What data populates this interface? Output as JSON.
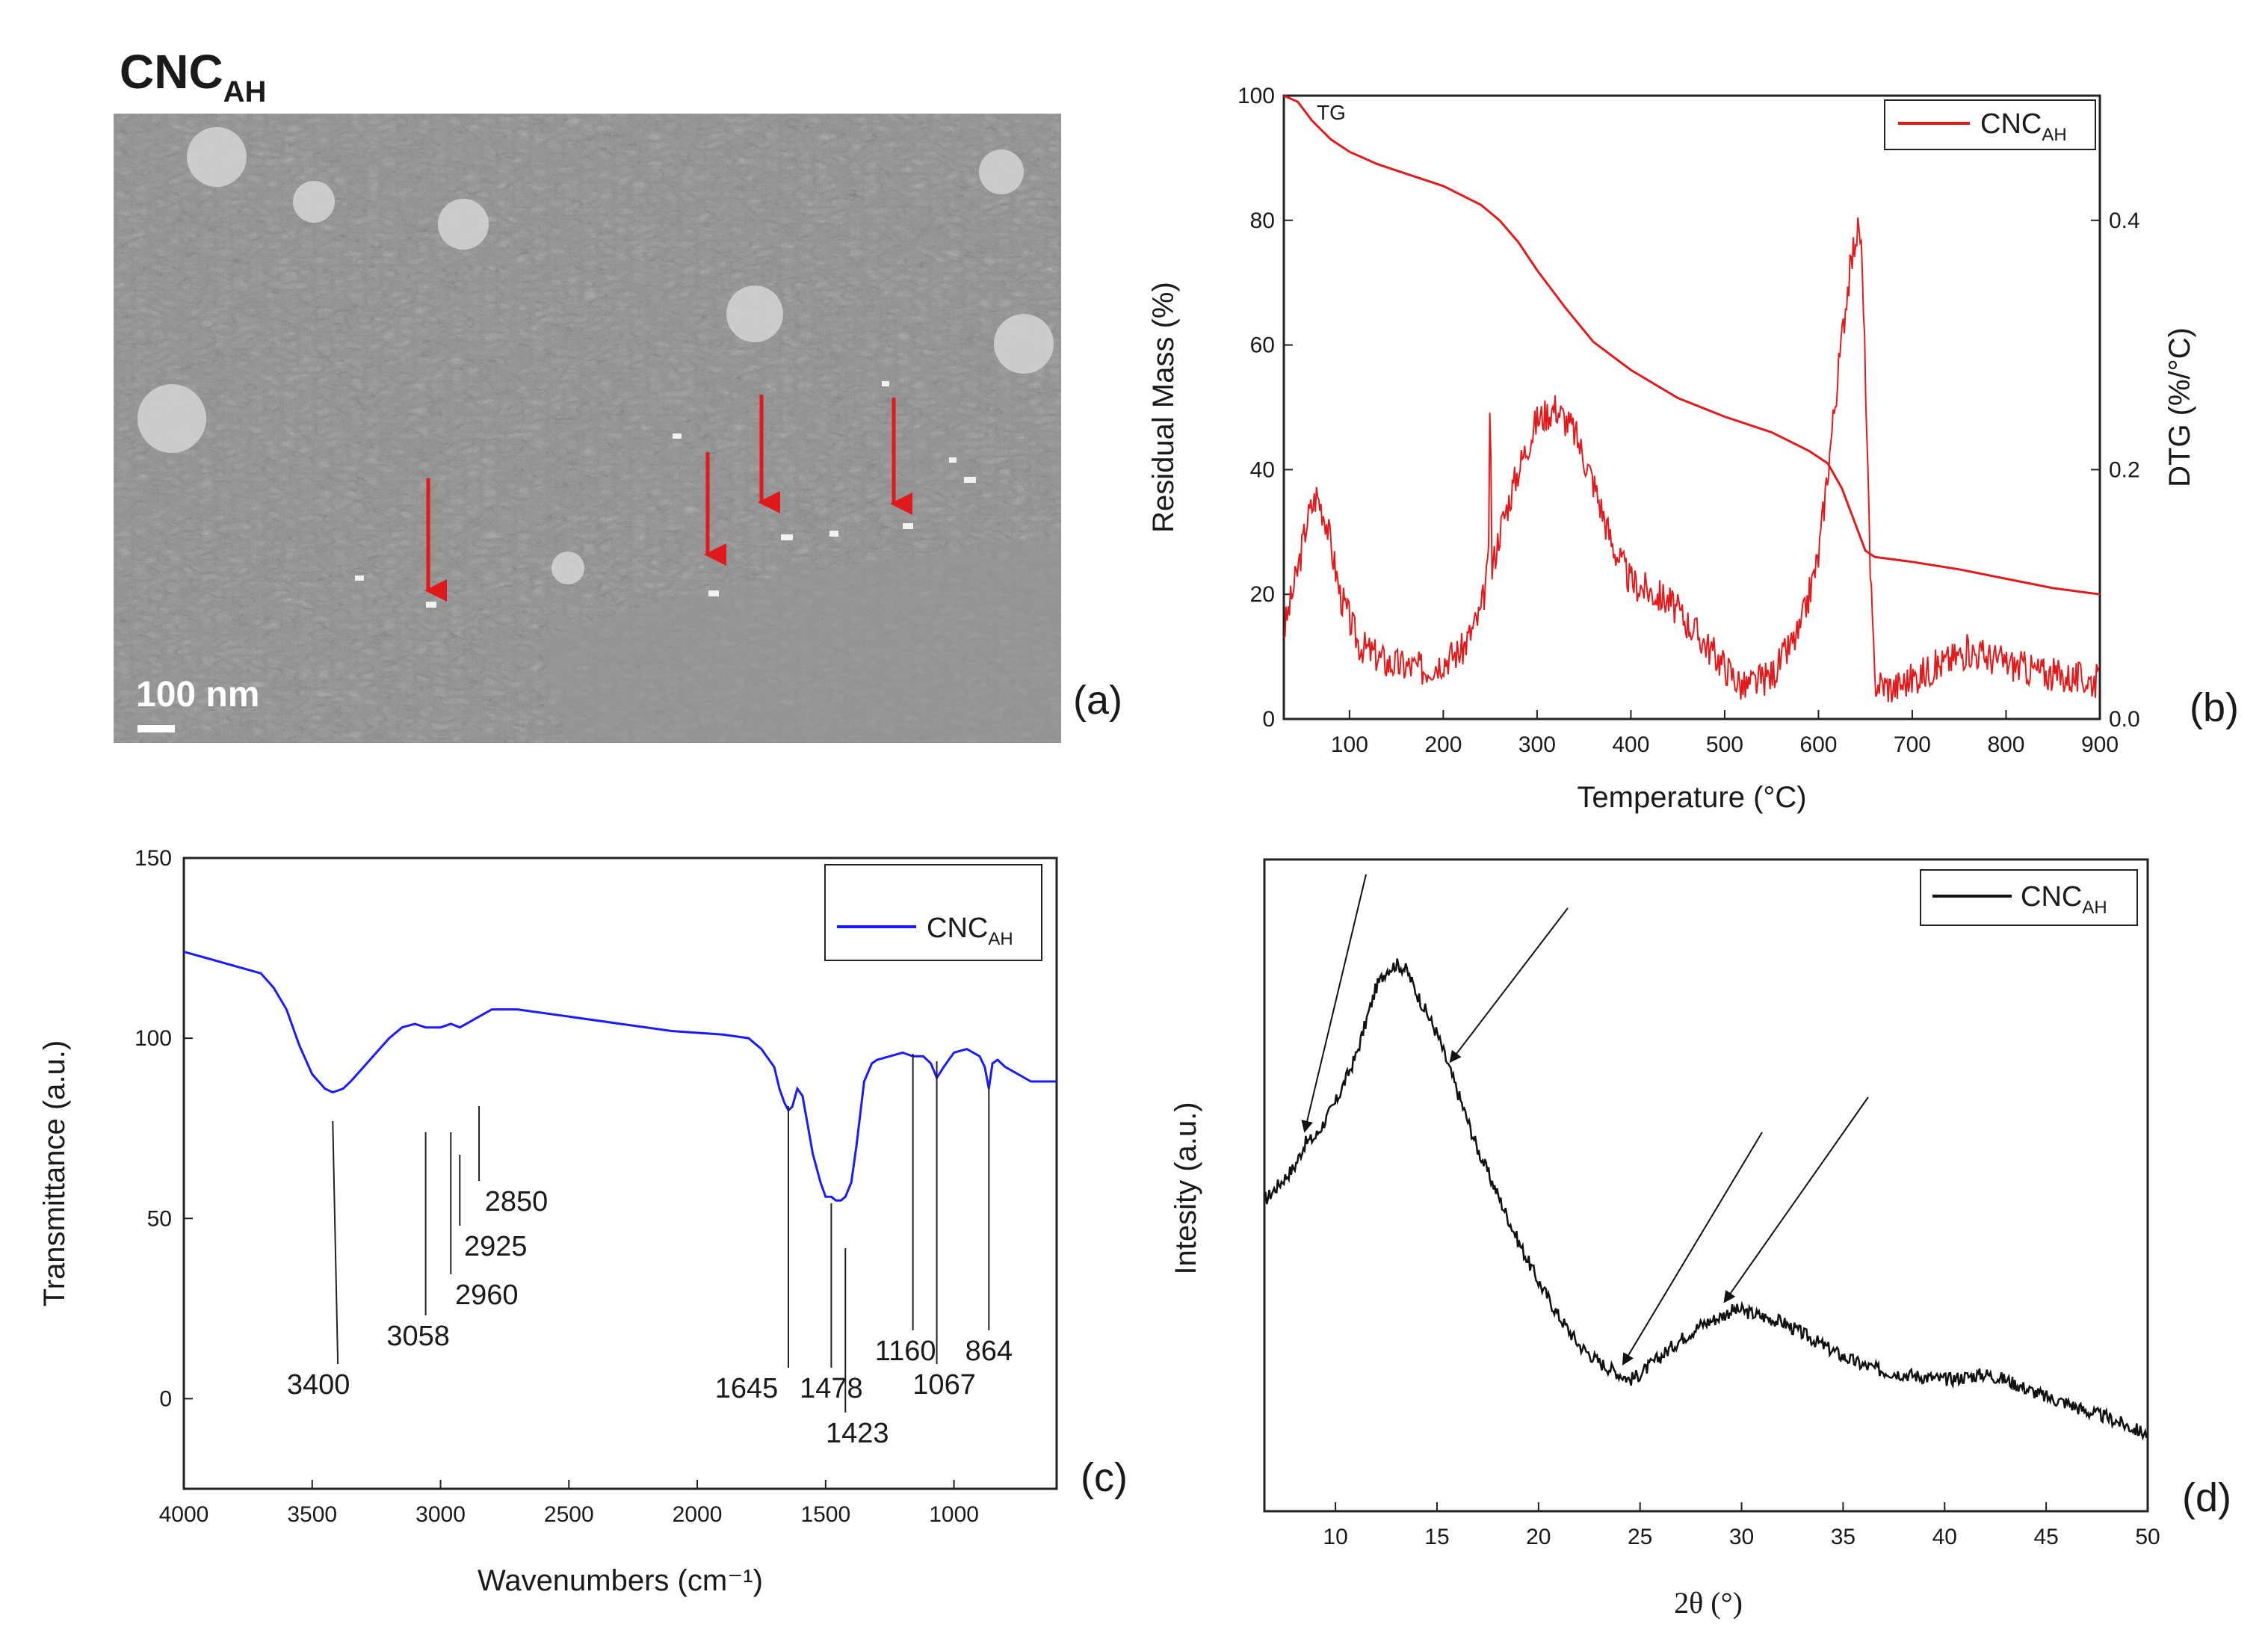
{
  "panels": {
    "a": {
      "title_main": "CNC",
      "title_sub": "AH",
      "scalebar_label": "100 nm",
      "panel_label": "(a)",
      "arrow_color": "#e0191c"
    },
    "b": {
      "panel_label": "(b)"
    },
    "c": {
      "panel_label": "(c)"
    },
    "d": {
      "panel_label": "(d)"
    }
  },
  "chart_data": [
    {
      "panel": "b",
      "type": "line",
      "title": "",
      "xlabel": "Temperature (°C)",
      "ylabel": "Residual Mass (%)",
      "y2label": "DTG (%/°C)",
      "xlim": [
        30,
        900
      ],
      "ylim": [
        0,
        100
      ],
      "y2lim": [
        0,
        0.5
      ],
      "xticks": [
        100,
        200,
        300,
        400,
        500,
        600,
        700,
        800,
        900
      ],
      "yticks": [
        0,
        20,
        40,
        60,
        80,
        100
      ],
      "y2ticks": [
        0.0,
        0.2,
        0.4
      ],
      "y2tick_labels": [
        "0.0",
        "0.2",
        "0.4"
      ],
      "annotation": "TG",
      "legend": {
        "name": "CNC",
        "sub": "AH",
        "placement": "top-right"
      },
      "color": "#e31a1c",
      "series": [
        {
          "name": "TG",
          "axis": "left",
          "x": [
            30,
            45,
            60,
            80,
            100,
            130,
            160,
            200,
            240,
            260,
            280,
            300,
            330,
            360,
            400,
            450,
            500,
            550,
            590,
            610,
            625,
            640,
            650,
            660,
            700,
            750,
            800,
            850,
            900
          ],
          "y": [
            100,
            99,
            96,
            93,
            91,
            89,
            87.5,
            85.5,
            82.5,
            80,
            76.5,
            72,
            66,
            60.5,
            56,
            51.5,
            48.5,
            46,
            43,
            41,
            37,
            31,
            27,
            26,
            25.2,
            24,
            22.5,
            21,
            20
          ]
        },
        {
          "name": "DTG",
          "axis": "right",
          "x": [
            30,
            45,
            55,
            65,
            75,
            90,
            110,
            140,
            180,
            220,
            240,
            248,
            250,
            252,
            260,
            280,
            300,
            320,
            340,
            360,
            380,
            400,
            440,
            480,
            520,
            550,
            580,
            600,
            620,
            630,
            640,
            645,
            650,
            655,
            660,
            680,
            720,
            760,
            800,
            850,
            900
          ],
          "y": [
            0.07,
            0.12,
            0.16,
            0.18,
            0.16,
            0.1,
            0.06,
            0.045,
            0.04,
            0.055,
            0.085,
            0.12,
            0.26,
            0.12,
            0.15,
            0.2,
            0.24,
            0.25,
            0.23,
            0.19,
            0.14,
            0.11,
            0.095,
            0.06,
            0.025,
            0.035,
            0.07,
            0.13,
            0.27,
            0.34,
            0.39,
            0.39,
            0.28,
            0.12,
            0.03,
            0.025,
            0.04,
            0.055,
            0.045,
            0.035,
            0.03
          ]
        }
      ]
    },
    {
      "panel": "c",
      "type": "line",
      "title": "",
      "xlabel": "Wavenumbers (cm⁻¹)",
      "ylabel": "Transmittance (a.u.)",
      "xlim": [
        4000,
        600
      ],
      "ylim": [
        -25,
        150
      ],
      "xticks": [
        4000,
        3500,
        3000,
        2500,
        2000,
        1500,
        1000
      ],
      "yticks": [
        0,
        50,
        100,
        150
      ],
      "legend": {
        "name": "CNC",
        "sub": "AH",
        "placement": "top-right"
      },
      "color": "#1a1aff",
      "series": [
        {
          "name": "CNC_AH",
          "x": [
            4000,
            3900,
            3800,
            3700,
            3650,
            3600,
            3550,
            3500,
            3450,
            3420,
            3380,
            3350,
            3300,
            3250,
            3200,
            3150,
            3100,
            3058,
            3000,
            2960,
            2925,
            2900,
            2850,
            2800,
            2700,
            2500,
            2300,
            2100,
            1900,
            1800,
            1750,
            1700,
            1680,
            1660,
            1645,
            1630,
            1610,
            1590,
            1570,
            1550,
            1520,
            1500,
            1478,
            1460,
            1440,
            1423,
            1400,
            1380,
            1350,
            1320,
            1300,
            1250,
            1200,
            1160,
            1120,
            1090,
            1067,
            1040,
            1000,
            950,
            900,
            880,
            864,
            850,
            830,
            800,
            700,
            600
          ],
          "y": [
            124,
            122,
            120,
            118,
            114,
            108,
            98,
            90,
            86,
            85,
            86,
            88,
            92,
            96,
            100,
            103,
            104,
            103,
            103,
            104,
            103,
            104,
            106,
            108,
            108,
            106,
            104,
            102,
            101,
            100,
            97,
            92,
            86,
            82,
            80,
            81,
            86,
            84,
            76,
            68,
            60,
            56,
            56,
            55,
            55,
            56,
            60,
            70,
            88,
            93,
            94,
            95,
            96,
            95,
            95,
            93,
            89,
            92,
            96,
            97,
            95,
            92,
            86,
            93,
            94,
            92,
            88,
            88
          ]
        }
      ],
      "annotations": [
        {
          "label": "3400",
          "x": 3400
        },
        {
          "label": "3058",
          "x": 3058
        },
        {
          "label": "2960",
          "x": 2960
        },
        {
          "label": "2925",
          "x": 2925
        },
        {
          "label": "2850",
          "x": 2850
        },
        {
          "label": "1645",
          "x": 1645
        },
        {
          "label": "1478",
          "x": 1478
        },
        {
          "label": "1423",
          "x": 1423
        },
        {
          "label": "1160",
          "x": 1160
        },
        {
          "label": "1067",
          "x": 1067
        },
        {
          "label": "864",
          "x": 864
        }
      ]
    },
    {
      "panel": "d",
      "type": "line",
      "title": "",
      "xlabel": "2θ (°)",
      "ylabel": "Intesity (a.u.)",
      "xlim": [
        6.5,
        50
      ],
      "ylim": [
        0,
        100
      ],
      "xticks": [
        10,
        15,
        20,
        25,
        30,
        35,
        40,
        45,
        50
      ],
      "yticks": [],
      "legend": {
        "name": "CNC",
        "sub": "AH",
        "placement": "top-right"
      },
      "color": "#111111",
      "series": [
        {
          "name": "CNC_AH",
          "x": [
            6.5,
            7,
            8,
            8.5,
            9,
            10,
            11,
            12,
            12.5,
            13,
            13.5,
            14,
            15,
            15.5,
            16,
            17,
            18,
            19,
            20,
            21,
            22,
            23,
            24,
            24.5,
            25,
            26,
            27,
            28,
            29,
            29.5,
            30,
            31,
            32,
            33,
            34,
            35,
            36,
            37,
            38,
            39,
            40,
            41,
            42,
            43,
            44,
            45,
            46,
            47,
            48,
            49,
            50
          ],
          "y": [
            46,
            48,
            52,
            56,
            57,
            63,
            71,
            83,
            86,
            87,
            86,
            82,
            75,
            70,
            65,
            55,
            47,
            39,
            32,
            26,
            21,
            18,
            16,
            15,
            16,
            19,
            22,
            24.5,
            26,
            27,
            27,
            26,
            25,
            23,
            21,
            19,
            17.5,
            16.5,
            16,
            15.5,
            15,
            15.5,
            16,
            15,
            13.5,
            12,
            11,
            9.5,
            8.5,
            7,
            5.5
          ]
        }
      ],
      "arrow_positions_x": [
        8.5,
        15.7,
        24.2,
        29.2
      ]
    }
  ]
}
